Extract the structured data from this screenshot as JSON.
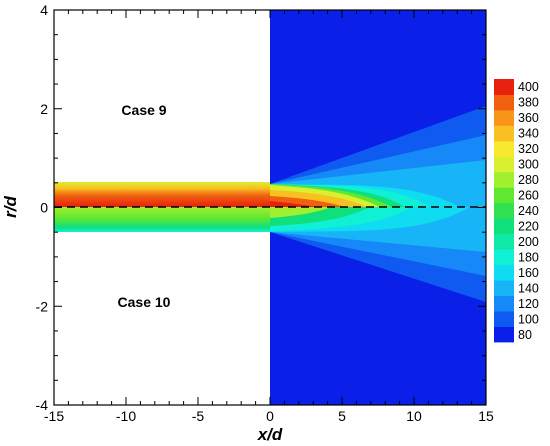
{
  "chart_data": {
    "type": "heatmap",
    "title": "",
    "xlabel": "x/d",
    "ylabel": "r/d",
    "xlim": [
      -15,
      15
    ],
    "ylim": [
      -4,
      4
    ],
    "x_ticks": [
      -15,
      -10,
      -5,
      0,
      5,
      10,
      15
    ],
    "y_ticks": [
      -4,
      -2,
      0,
      2,
      4
    ],
    "grid": false,
    "annotations": [
      {
        "text": "Case 9",
        "x": -9.6,
        "y": 1.95
      },
      {
        "text": "Case 10",
        "x": -9.6,
        "y": -1.9
      }
    ],
    "centerline": {
      "style": "dashed",
      "y": 0,
      "x_range": [
        -15,
        15
      ]
    },
    "colorbar": {
      "position": "right",
      "levels": [
        80,
        100,
        120,
        140,
        160,
        180,
        200,
        220,
        240,
        260,
        280,
        300,
        320,
        340,
        360,
        380,
        400
      ],
      "colors": [
        "#0a1fe8",
        "#0f5af0",
        "#1788f8",
        "#17b4f8",
        "#0fdcf0",
        "#10f0d4",
        "#10e8a8",
        "#10e07c",
        "#30e050",
        "#60e830",
        "#a0f030",
        "#d8f030",
        "#f8e830",
        "#f8c020",
        "#f89418",
        "#f06010",
        "#e82010"
      ]
    },
    "regions": {
      "background_x_range": [
        0,
        15
      ],
      "background_value": 80,
      "nozzle_x_range": [
        -15,
        0
      ],
      "case_9_top_edge_y": 0.5,
      "case_10_bottom_edge_y": -0.5
    }
  }
}
